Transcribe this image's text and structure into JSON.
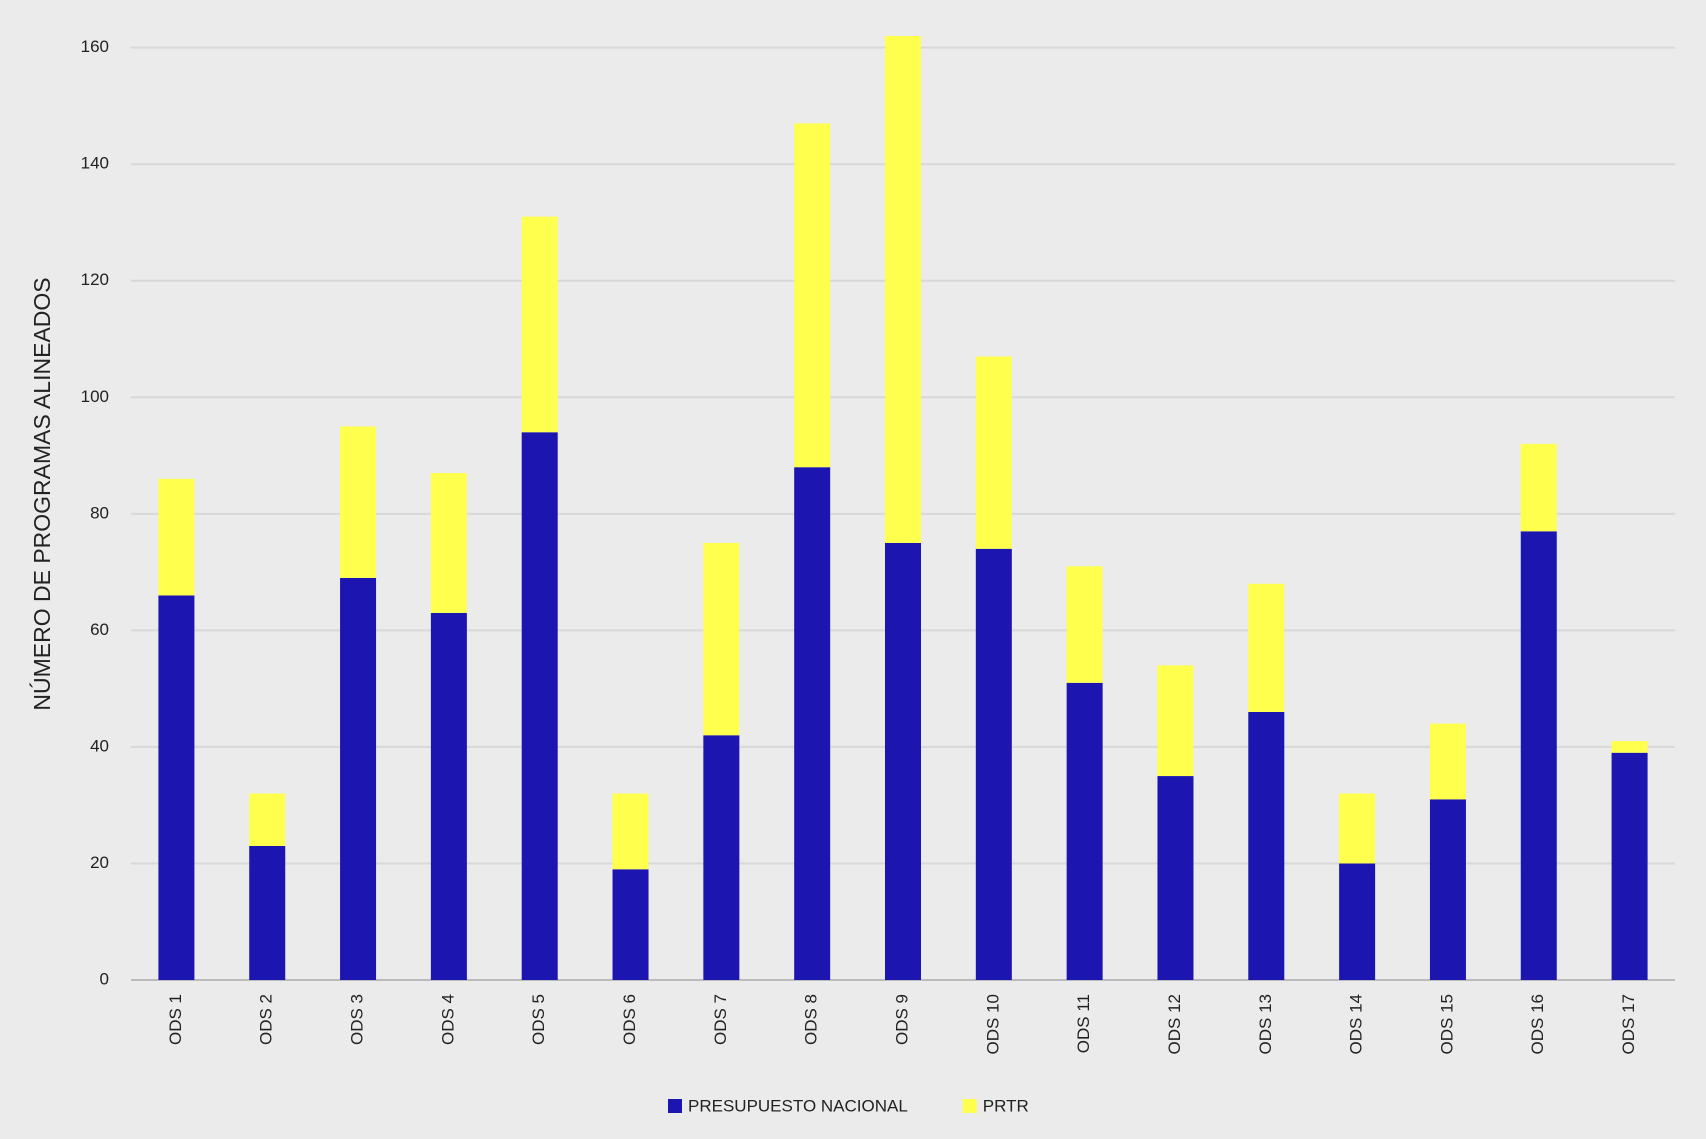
{
  "chart_data": {
    "type": "stacked-bar",
    "y_label": "NÚMERO DE PROGRAMAS ALINEADOS",
    "categories": [
      "ODS 1",
      "ODS 2",
      "ODS 3",
      "ODS 4",
      "ODS 5",
      "ODS 6",
      "ODS 7",
      "ODS 8",
      "ODS 9",
      "ODS 10",
      "ODS 11",
      "ODS 12",
      "ODS 13",
      "ODS 14",
      "ODS 15",
      "ODS 16",
      "ODS 17"
    ],
    "series": [
      {
        "name": "PRESUPUESTO NACIONAL",
        "color": "#1c15b0",
        "values": [
          66,
          23,
          69,
          63,
          94,
          19,
          42,
          88,
          75,
          74,
          51,
          35,
          46,
          20,
          31,
          77,
          39
        ]
      },
      {
        "name": "PRTR",
        "color": "#ffff4d",
        "values": [
          20,
          9,
          26,
          24,
          37,
          13,
          33,
          59,
          87,
          33,
          20,
          19,
          22,
          12,
          13,
          15,
          2
        ]
      }
    ],
    "ylim": [
      0,
      162
    ],
    "yticks": [
      0,
      20,
      40,
      60,
      80,
      100,
      120,
      140,
      160
    ],
    "grid": true,
    "legend": "bottom"
  }
}
